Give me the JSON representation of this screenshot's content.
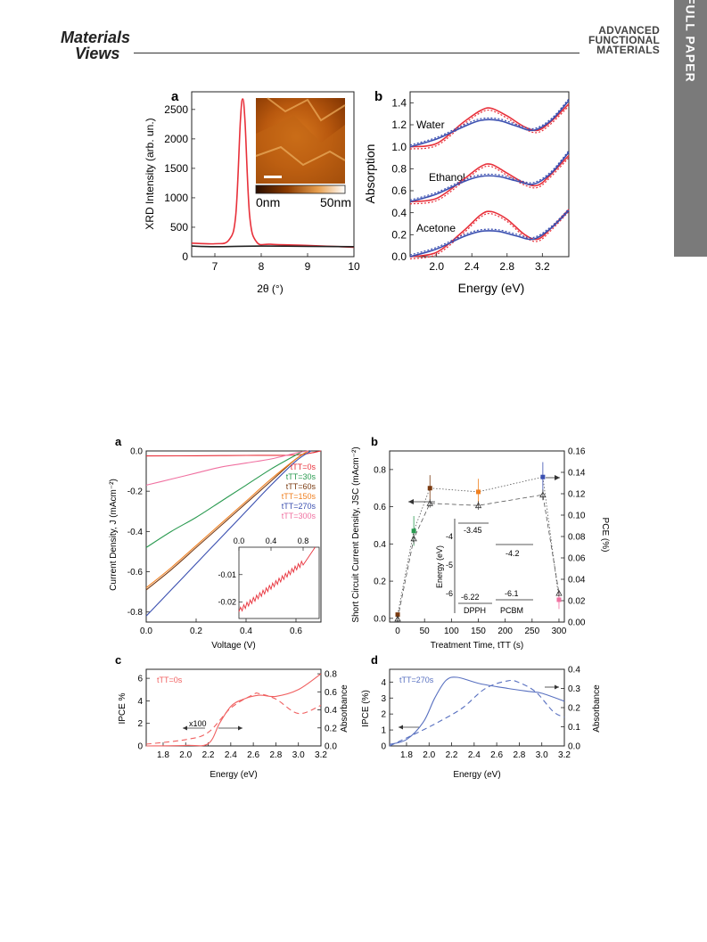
{
  "header": {
    "left_logo_line1": "Materials",
    "left_logo_line2": "Views",
    "right_logo_lines": [
      "ADVANCED",
      "FUNCTIONAL",
      "MATERIALS"
    ]
  },
  "side_tab": {
    "label": "FULL PAPER",
    "color": "#7a7a7a"
  },
  "colors": {
    "red": "#e8303a",
    "blue": "#3a4fb0",
    "green": "#2a9a50",
    "brown": "#7a3a10",
    "orange": "#f08020",
    "purple": "#8050b0",
    "pink": "#f070a0",
    "black": "#222222",
    "ipce_red": "#f06060",
    "ipce_blue": "#5870c0"
  },
  "figure1": {
    "panel_a": {
      "label": "a",
      "ylabel": "XRD Intensity (arb. un.)",
      "xlabel": "2θ (°)",
      "xlim": [
        6.5,
        10
      ],
      "ylim": [
        0,
        2800
      ],
      "xticks": [
        "7",
        "8",
        "9",
        "10"
      ],
      "yticks": [
        "0",
        "500",
        "1000",
        "1500",
        "2000",
        "2500"
      ],
      "inset_colorbar_min": "0nm",
      "inset_colorbar_max": "50nm"
    },
    "panel_b": {
      "label": "b",
      "ylabel": "Absorption",
      "xlabel": "Energy (eV)",
      "xlim": [
        1.7,
        3.5
      ],
      "ylim": [
        0,
        1.5
      ],
      "xticks": [
        "2.0",
        "2.4",
        "2.8",
        "3.2"
      ],
      "yticks": [
        "0.0",
        "0.2",
        "0.4",
        "0.6",
        "0.8",
        "1.0",
        "1.2",
        "1.4"
      ],
      "series_labels": [
        "Water",
        "Ethanol",
        "Acetone"
      ]
    }
  },
  "figure2": {
    "panel_a": {
      "label": "a",
      "ylabel": "Current Density, J (mAcm⁻²)",
      "xlabel": "Voltage (V)",
      "xlim": [
        0,
        0.7
      ],
      "ylim": [
        -0.85,
        0
      ],
      "xticks": [
        "0.0",
        "0.2",
        "0.4",
        "0.6"
      ],
      "yticks": [
        "0.0",
        "-0.2",
        "-0.4",
        "-0.6",
        "-0.8"
      ],
      "legend": [
        "tTT=0s",
        "tTT=30s",
        "tTT=60s",
        "tTT=150s",
        "tTT=270s",
        "tTT=300s"
      ],
      "inset_xticks": [
        "0.0",
        "0.4",
        "0.8"
      ],
      "inset_yticks": [
        "-0.01",
        "-0.02"
      ]
    },
    "panel_b": {
      "label": "b",
      "ylabel": "Short Circuit Current Density, JSC (mAcm⁻²)",
      "ylabel_right": "PCE (%)",
      "xlabel": "Treatment Time, tTT (s)",
      "xticks": [
        "0",
        "50",
        "100",
        "150",
        "200",
        "250",
        "300"
      ],
      "yticks": [
        "0.0",
        "0.2",
        "0.4",
        "0.6",
        "0.8"
      ],
      "yticks_right": [
        "0.00",
        "0.02",
        "0.04",
        "0.06",
        "0.08",
        "0.10",
        "0.12",
        "0.14",
        "0.16"
      ],
      "inset_ylabel": "Energy (eV)",
      "inset_levels": [
        "-3.45",
        "-4.2",
        "-6.22",
        "-6.1"
      ],
      "inset_yticks": [
        "-4",
        "-5",
        "-6"
      ],
      "inset_materials": [
        "DPPH",
        "PCBM"
      ]
    },
    "panel_c": {
      "label": "c",
      "ylabel": "IPCE %",
      "ylabel_right": "Absorbance",
      "xlabel": "Energy (eV)",
      "legend": "tTT=0s",
      "annotation": "x100",
      "xticks": [
        "1.8",
        "2.0",
        "2.2",
        "2.4",
        "2.6",
        "2.8",
        "3.0",
        "3.2"
      ],
      "yticks": [
        "0",
        "2",
        "4",
        "6"
      ],
      "yticks_right": [
        "0.0",
        "0.2",
        "0.4",
        "0.6",
        "0.8"
      ]
    },
    "panel_d": {
      "label": "d",
      "ylabel": "IPCE (%)",
      "ylabel_right": "Absorbance",
      "xlabel": "Energy (eV)",
      "legend": "tTT=270s",
      "xticks": [
        "1.8",
        "2.0",
        "2.2",
        "2.4",
        "2.6",
        "2.8",
        "3.0",
        "3.2"
      ],
      "yticks": [
        "0",
        "1",
        "2",
        "3",
        "4"
      ],
      "yticks_right": [
        "0.0",
        "0.1",
        "0.2",
        "0.3",
        "0.4"
      ]
    }
  },
  "chart_data": [
    {
      "type": "line",
      "title": "",
      "xlabel": "2θ (°)",
      "ylabel": "XRD Intensity (arb. un.)",
      "xlim": [
        6.5,
        10
      ],
      "ylim": [
        0,
        2800
      ],
      "series": [
        {
          "color": "#e8303a",
          "x": [
            6.5,
            7.0,
            7.3,
            7.45,
            7.55,
            7.6,
            7.65,
            7.75,
            7.9,
            8.2,
            9.0,
            10.0
          ],
          "y": [
            230,
            220,
            280,
            700,
            2300,
            2680,
            2300,
            700,
            250,
            210,
            190,
            160
          ]
        },
        {
          "color": "#222222",
          "x": [
            6.5,
            7.0,
            8.0,
            9.0,
            10.0
          ],
          "y": [
            180,
            170,
            180,
            175,
            170
          ]
        }
      ]
    },
    {
      "type": "line",
      "title": "",
      "xlabel": "Energy (eV)",
      "ylabel": "Absorption",
      "xlim": [
        1.7,
        3.5
      ],
      "ylim": [
        0,
        1.5
      ],
      "series": [
        {
          "name": "Water",
          "color": "#e8303a",
          "x": [
            1.7,
            2.0,
            2.3,
            2.5,
            2.62,
            2.8,
            3.0,
            3.15,
            3.3,
            3.5
          ],
          "y": [
            1.0,
            1.03,
            1.22,
            1.33,
            1.35,
            1.28,
            1.18,
            1.15,
            1.23,
            1.39
          ]
        },
        {
          "name": "Water",
          "color": "#3a4fb0",
          "x": [
            1.7,
            2.0,
            2.3,
            2.5,
            2.7,
            2.9,
            3.1,
            3.3,
            3.5
          ],
          "y": [
            1.0,
            1.07,
            1.18,
            1.24,
            1.24,
            1.19,
            1.15,
            1.24,
            1.42
          ]
        },
        {
          "name": "Ethanol",
          "color": "#e8303a",
          "x": [
            1.7,
            2.0,
            2.3,
            2.5,
            2.62,
            2.8,
            3.0,
            3.15,
            3.3,
            3.5
          ],
          "y": [
            0.5,
            0.53,
            0.7,
            0.82,
            0.84,
            0.76,
            0.67,
            0.65,
            0.75,
            0.92
          ]
        },
        {
          "name": "Ethanol",
          "color": "#3a4fb0",
          "x": [
            1.7,
            2.0,
            2.3,
            2.5,
            2.7,
            2.9,
            3.1,
            3.3,
            3.5
          ],
          "y": [
            0.5,
            0.57,
            0.68,
            0.73,
            0.73,
            0.69,
            0.66,
            0.76,
            0.95
          ]
        },
        {
          "name": "Acetone",
          "color": "#e8303a",
          "x": [
            1.7,
            2.0,
            2.3,
            2.5,
            2.62,
            2.8,
            3.0,
            3.15,
            3.3,
            3.5
          ],
          "y": [
            0.0,
            0.04,
            0.23,
            0.38,
            0.41,
            0.34,
            0.2,
            0.16,
            0.26,
            0.43
          ]
        },
        {
          "name": "Acetone",
          "color": "#3a4fb0",
          "x": [
            1.7,
            2.0,
            2.3,
            2.5,
            2.7,
            2.9,
            3.1,
            3.3,
            3.5
          ],
          "y": [
            0.0,
            0.07,
            0.18,
            0.23,
            0.23,
            0.19,
            0.16,
            0.26,
            0.42
          ]
        }
      ]
    },
    {
      "type": "line",
      "title": "",
      "xlabel": "Voltage (V)",
      "ylabel": "Current Density, J (mAcm⁻²)",
      "xlim": [
        0,
        0.7
      ],
      "ylim": [
        -0.85,
        0
      ],
      "series": [
        {
          "name": "tTT=0s",
          "color": "#e8303a",
          "x": [
            0,
            0.2,
            0.4,
            0.6,
            0.7
          ],
          "y": [
            -0.025,
            -0.024,
            -0.022,
            -0.02,
            0
          ]
        },
        {
          "name": "tTT=30s",
          "color": "#2a9a50",
          "x": [
            0,
            0.1,
            0.2,
            0.3,
            0.4,
            0.5,
            0.6,
            0.63
          ],
          "y": [
            -0.48,
            -0.4,
            -0.33,
            -0.25,
            -0.17,
            -0.09,
            -0.02,
            0
          ]
        },
        {
          "name": "tTT=60s",
          "color": "#7a3a10",
          "x": [
            0,
            0.1,
            0.2,
            0.3,
            0.4,
            0.5,
            0.6,
            0.65
          ],
          "y": [
            -0.69,
            -0.59,
            -0.48,
            -0.37,
            -0.26,
            -0.15,
            -0.04,
            0
          ]
        },
        {
          "name": "tTT=150s",
          "color": "#f08020",
          "x": [
            0,
            0.1,
            0.2,
            0.3,
            0.4,
            0.5,
            0.6,
            0.65
          ],
          "y": [
            -0.68,
            -0.58,
            -0.47,
            -0.36,
            -0.25,
            -0.14,
            -0.04,
            0
          ]
        },
        {
          "name": "tTT=270s",
          "color": "#3a4fb0",
          "x": [
            0,
            0.1,
            0.2,
            0.3,
            0.4,
            0.5,
            0.6,
            0.66
          ],
          "y": [
            -0.82,
            -0.69,
            -0.56,
            -0.43,
            -0.3,
            -0.17,
            -0.05,
            0
          ]
        },
        {
          "name": "tTT=300s",
          "color": "#f070a0",
          "x": [
            0,
            0.1,
            0.2,
            0.3,
            0.4,
            0.5,
            0.6,
            0.65
          ],
          "y": [
            -0.17,
            -0.14,
            -0.11,
            -0.08,
            -0.06,
            -0.04,
            -0.01,
            0
          ]
        }
      ]
    },
    {
      "type": "scatter",
      "title": "",
      "xlabel": "Treatment Time, tTT (s)",
      "ylabel": "Short Circuit Current Density, JSC (mAcm⁻²)",
      "xlim": [
        -15,
        310
      ],
      "ylim": [
        -0.02,
        0.9
      ],
      "series": [
        {
          "name": "JSC",
          "x": [
            0,
            30,
            60,
            150,
            270,
            300
          ],
          "y": [
            0.02,
            0.47,
            0.7,
            0.68,
            0.76,
            0.1
          ],
          "err": [
            0.01,
            0.08,
            0.07,
            0.07,
            0.08,
            0.05
          ]
        },
        {
          "name": "PCE",
          "x": [
            0,
            30,
            60,
            150,
            270,
            300
          ],
          "y_right": [
            0.003,
            0.078,
            0.111,
            0.109,
            0.119,
            0.027
          ],
          "err": [
            0.002,
            0.005,
            0.004,
            0.004,
            0.005,
            0.002
          ]
        }
      ]
    },
    {
      "type": "line",
      "title": "",
      "xlabel": "Energy (eV)",
      "ylabel": "IPCE %",
      "xlim": [
        1.65,
        3.2
      ],
      "ylim": [
        0,
        6.8
      ],
      "series": [
        {
          "name": "IPCE",
          "color": "#f06060",
          "x": [
            1.65,
            2.0,
            2.2,
            2.3,
            2.4,
            2.5,
            2.65,
            2.8,
            3.0,
            3.2
          ],
          "y": [
            0,
            0.05,
            0.2,
            2.0,
            3.5,
            4.1,
            4.5,
            4.4,
            5.0,
            6.4
          ]
        },
        {
          "name": "Absorbance",
          "color": "#f06060",
          "x": [
            1.65,
            2.0,
            2.2,
            2.4,
            2.6,
            2.65,
            2.8,
            3.0,
            3.2
          ],
          "y_right": [
            0.02,
            0.07,
            0.15,
            0.42,
            0.57,
            0.58,
            0.52,
            0.36,
            0.45
          ]
        }
      ]
    },
    {
      "type": "line",
      "title": "",
      "xlabel": "Energy (eV)",
      "ylabel": "IPCE (%)",
      "xlim": [
        1.65,
        3.2
      ],
      "ylim": [
        0,
        4.8
      ],
      "series": [
        {
          "name": "IPCE",
          "color": "#5870c0",
          "x": [
            1.65,
            1.8,
            1.95,
            2.05,
            2.15,
            2.25,
            2.45,
            2.7,
            2.9,
            3.0,
            3.2
          ],
          "y": [
            0.1,
            0.4,
            1.5,
            3.0,
            4.1,
            4.3,
            3.9,
            3.6,
            3.4,
            3.3,
            2.8
          ]
        },
        {
          "name": "Absorbance",
          "color": "#5870c0",
          "x": [
            1.65,
            1.9,
            2.1,
            2.3,
            2.5,
            2.7,
            2.8,
            2.95,
            3.1,
            3.2
          ],
          "y_right": [
            0.0,
            0.07,
            0.13,
            0.2,
            0.3,
            0.34,
            0.33,
            0.28,
            0.18,
            0.15
          ]
        }
      ]
    }
  ]
}
